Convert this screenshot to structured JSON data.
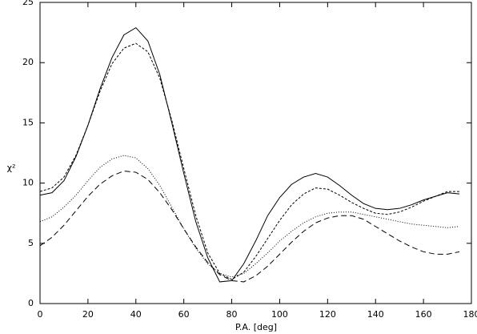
{
  "chart_data": {
    "type": "line",
    "xlabel": "P.A. [deg]",
    "ylabel": "χ²",
    "x": [
      0,
      5,
      10,
      15,
      20,
      25,
      30,
      35,
      40,
      45,
      50,
      55,
      60,
      65,
      70,
      75,
      80,
      85,
      90,
      95,
      100,
      105,
      110,
      115,
      120,
      125,
      130,
      135,
      140,
      145,
      150,
      155,
      160,
      165,
      170,
      175
    ],
    "series": [
      {
        "color": "#000000",
        "dash": "solid",
        "values": [
          9.0,
          9.2,
          10.2,
          12.2,
          14.8,
          17.8,
          20.4,
          22.3,
          22.9,
          21.8,
          19.0,
          15.0,
          10.8,
          6.8,
          3.8,
          1.8,
          1.9,
          3.3,
          5.2,
          7.3,
          8.8,
          9.9,
          10.5,
          10.8,
          10.5,
          9.8,
          9.0,
          8.3,
          7.9,
          7.8,
          7.9,
          8.2,
          8.6,
          8.9,
          9.2,
          9.1
        ]
      },
      {
        "color": "#000000",
        "dash": "short-dash",
        "values": [
          9.3,
          9.6,
          10.5,
          12.3,
          14.8,
          17.6,
          19.9,
          21.2,
          21.6,
          20.9,
          18.7,
          15.2,
          11.2,
          7.3,
          4.2,
          2.5,
          2.0,
          2.6,
          3.9,
          5.4,
          6.9,
          8.2,
          9.1,
          9.6,
          9.5,
          9.0,
          8.4,
          7.9,
          7.5,
          7.4,
          7.6,
          8.0,
          8.5,
          8.9,
          9.3,
          9.3
        ]
      },
      {
        "color": "#000000",
        "dash": "dotted",
        "values": [
          6.8,
          7.2,
          8.0,
          9.0,
          10.2,
          11.3,
          12.0,
          12.3,
          12.1,
          11.2,
          9.8,
          8.0,
          6.2,
          4.6,
          3.3,
          2.5,
          2.2,
          2.5,
          3.3,
          4.2,
          5.2,
          6.0,
          6.7,
          7.2,
          7.5,
          7.6,
          7.6,
          7.4,
          7.2,
          7.0,
          6.8,
          6.6,
          6.5,
          6.4,
          6.3,
          6.4
        ]
      },
      {
        "color": "#000000",
        "dash": "long-dash",
        "values": [
          4.8,
          5.5,
          6.5,
          7.7,
          8.9,
          9.9,
          10.6,
          11.0,
          10.9,
          10.3,
          9.2,
          7.8,
          6.2,
          4.7,
          3.4,
          2.4,
          1.9,
          1.8,
          2.3,
          3.1,
          4.1,
          5.1,
          6.0,
          6.7,
          7.1,
          7.3,
          7.3,
          7.0,
          6.4,
          5.8,
          5.2,
          4.7,
          4.3,
          4.1,
          4.1,
          4.3
        ]
      }
    ],
    "xlim": [
      0,
      180
    ],
    "xticks": [
      0,
      20,
      40,
      60,
      80,
      100,
      120,
      140,
      160,
      180
    ],
    "ylim": [
      0,
      25
    ],
    "yticks": [
      0,
      5,
      10,
      15,
      20,
      25
    ],
    "grid": false
  }
}
